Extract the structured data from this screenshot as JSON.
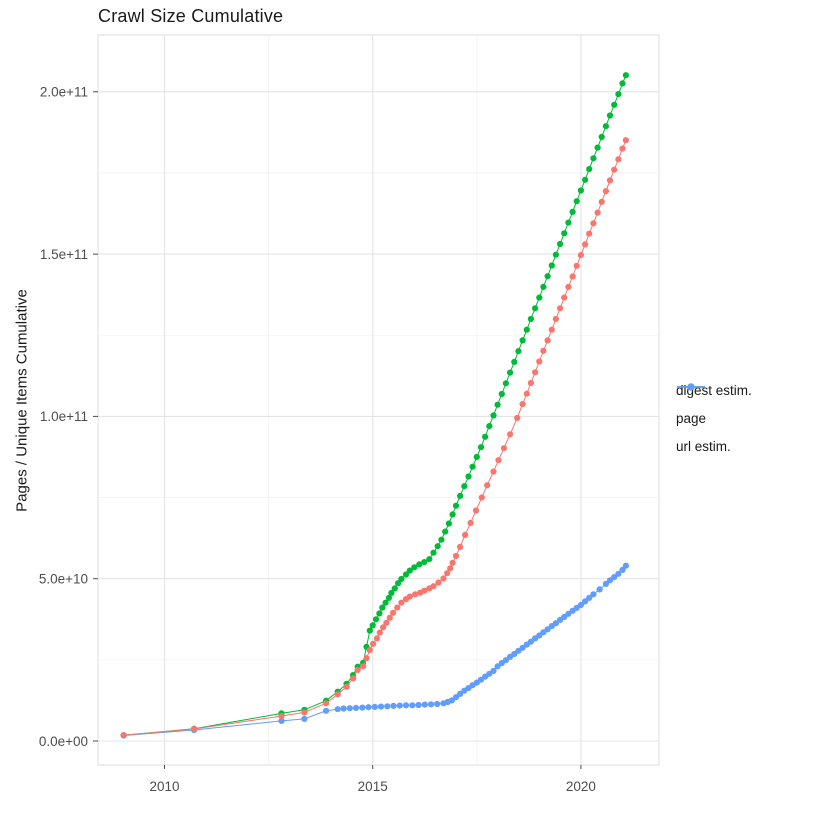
{
  "title": "Crawl Size Cumulative",
  "x_axis": {
    "ticks": [
      {
        "label": "2010",
        "value": 2010
      },
      {
        "label": "2015",
        "value": 2015
      },
      {
        "label": "2020",
        "value": 2020
      }
    ],
    "minor_gridlines": [
      2012.5,
      2017.5
    ]
  },
  "y_axis": {
    "label": "Pages / Unique Items Cumulative",
    "ticks": [
      {
        "label": "0.0e+00",
        "value_1e10": 0
      },
      {
        "label": "5.0e+10",
        "value_1e10": 5
      },
      {
        "label": "1.0e+11",
        "value_1e10": 10
      },
      {
        "label": "1.5e+11",
        "value_1e10": 15
      },
      {
        "label": "2.0e+11",
        "value_1e10": 20
      }
    ],
    "minor_gridlines_1e10": [
      2.5,
      7.5,
      12.5,
      17.5
    ]
  },
  "legend": {
    "position": "right",
    "items": [
      {
        "label": "digest estim.",
        "color": "#F8766D"
      },
      {
        "label": "page",
        "color": "#00BA38"
      },
      {
        "label": "url estim.",
        "color": "#619CFF"
      }
    ]
  },
  "colors": {
    "digest": "#F8766D",
    "page": "#00BA38",
    "url": "#619CFF",
    "grid_major": "#e4e4e4",
    "grid_minor": "#f2f2f2",
    "panel_border": "#dedede",
    "tick": "#4d4d4d",
    "tick_text": "#4d4d4d",
    "title_text": "#1a1a1a"
  },
  "chart_data": {
    "type": "scatter",
    "title": "Crawl Size Cumulative",
    "xlabel": "",
    "ylabel": "Pages / Unique Items Cumulative",
    "value_unit": "1e10 pages (y values below are in units of 1e10)",
    "x_domain": [
      2008.4,
      2021.87
    ],
    "y_domain_1e10": [
      -0.74,
      21.75
    ],
    "grid": true,
    "legend_position": "right",
    "series": [
      {
        "name": "digest estim.",
        "color": "#F8766D",
        "z": 3,
        "points": [
          [
            2009.02,
            0.18
          ],
          [
            2010.71,
            0.37
          ],
          [
            2012.81,
            0.77
          ],
          [
            2013.36,
            0.88
          ],
          [
            2013.88,
            1.16
          ],
          [
            2014.16,
            1.44
          ],
          [
            2014.37,
            1.67
          ],
          [
            2014.53,
            1.93
          ],
          [
            2014.64,
            2.19
          ],
          [
            2014.77,
            2.3
          ],
          [
            2014.85,
            2.55
          ],
          [
            2014.93,
            2.8
          ],
          [
            2015.01,
            2.99
          ],
          [
            2015.1,
            3.16
          ],
          [
            2015.17,
            3.34
          ],
          [
            2015.25,
            3.5
          ],
          [
            2015.33,
            3.64
          ],
          [
            2015.41,
            3.8
          ],
          [
            2015.49,
            3.95
          ],
          [
            2015.59,
            4.11
          ],
          [
            2015.69,
            4.26
          ],
          [
            2015.8,
            4.37
          ],
          [
            2015.89,
            4.45
          ],
          [
            2016.02,
            4.52
          ],
          [
            2016.14,
            4.57
          ],
          [
            2016.24,
            4.63
          ],
          [
            2016.36,
            4.7
          ],
          [
            2016.46,
            4.77
          ],
          [
            2016.58,
            4.88
          ],
          [
            2016.7,
            5.01
          ],
          [
            2016.79,
            5.17
          ],
          [
            2016.86,
            5.32
          ],
          [
            2016.92,
            5.49
          ],
          [
            2017.0,
            5.7
          ],
          [
            2017.1,
            5.98
          ],
          [
            2017.22,
            6.35
          ],
          [
            2017.35,
            6.72
          ],
          [
            2017.48,
            7.1
          ],
          [
            2017.62,
            7.5
          ],
          [
            2017.75,
            7.88
          ],
          [
            2017.9,
            8.3
          ],
          [
            2018.02,
            8.65
          ],
          [
            2018.15,
            9.02
          ],
          [
            2018.3,
            9.45
          ],
          [
            2018.47,
            9.95
          ],
          [
            2018.6,
            10.38
          ],
          [
            2018.7,
            10.7
          ],
          [
            2018.8,
            11.03
          ],
          [
            2018.9,
            11.36
          ],
          [
            2019.0,
            11.69
          ],
          [
            2019.1,
            12.02
          ],
          [
            2019.2,
            12.34
          ],
          [
            2019.3,
            12.67
          ],
          [
            2019.4,
            13.0
          ],
          [
            2019.5,
            13.33
          ],
          [
            2019.6,
            13.66
          ],
          [
            2019.7,
            13.99
          ],
          [
            2019.8,
            14.31
          ],
          [
            2019.9,
            14.64
          ],
          [
            2020.0,
            14.97
          ],
          [
            2020.1,
            15.3
          ],
          [
            2020.2,
            15.63
          ],
          [
            2020.3,
            15.95
          ],
          [
            2020.4,
            16.28
          ],
          [
            2020.5,
            16.61
          ],
          [
            2020.6,
            16.94
          ],
          [
            2020.7,
            17.27
          ],
          [
            2020.8,
            17.6
          ],
          [
            2020.9,
            17.92
          ],
          [
            2021.0,
            18.25
          ],
          [
            2021.08,
            18.51
          ]
        ]
      },
      {
        "name": "page",
        "color": "#00BA38",
        "z": 2,
        "points": [
          [
            2009.02,
            0.18
          ],
          [
            2010.71,
            0.38
          ],
          [
            2012.81,
            0.85
          ],
          [
            2013.36,
            0.96
          ],
          [
            2013.88,
            1.24
          ],
          [
            2014.16,
            1.52
          ],
          [
            2014.37,
            1.76
          ],
          [
            2014.53,
            2.03
          ],
          [
            2014.64,
            2.29
          ],
          [
            2014.77,
            2.41
          ],
          [
            2014.85,
            2.9
          ],
          [
            2014.93,
            3.4
          ],
          [
            2015.0,
            3.56
          ],
          [
            2015.08,
            3.75
          ],
          [
            2015.16,
            3.93
          ],
          [
            2015.23,
            4.11
          ],
          [
            2015.31,
            4.26
          ],
          [
            2015.39,
            4.41
          ],
          [
            2015.45,
            4.56
          ],
          [
            2015.53,
            4.7
          ],
          [
            2015.61,
            4.86
          ],
          [
            2015.69,
            4.99
          ],
          [
            2015.8,
            5.13
          ],
          [
            2015.89,
            5.25
          ],
          [
            2016.0,
            5.35
          ],
          [
            2016.12,
            5.44
          ],
          [
            2016.24,
            5.51
          ],
          [
            2016.36,
            5.6
          ],
          [
            2016.46,
            5.8
          ],
          [
            2016.56,
            6.0
          ],
          [
            2016.65,
            6.2
          ],
          [
            2016.74,
            6.45
          ],
          [
            2016.83,
            6.7
          ],
          [
            2016.92,
            6.98
          ],
          [
            2017.0,
            7.25
          ],
          [
            2017.1,
            7.55
          ],
          [
            2017.2,
            7.85
          ],
          [
            2017.3,
            8.15
          ],
          [
            2017.4,
            8.45
          ],
          [
            2017.5,
            8.75
          ],
          [
            2017.6,
            9.05
          ],
          [
            2017.7,
            9.37
          ],
          [
            2017.8,
            9.7
          ],
          [
            2017.9,
            10.03
          ],
          [
            2018.0,
            10.36
          ],
          [
            2018.1,
            10.69
          ],
          [
            2018.2,
            11.02
          ],
          [
            2018.3,
            11.35
          ],
          [
            2018.4,
            11.68
          ],
          [
            2018.5,
            12.01
          ],
          [
            2018.6,
            12.34
          ],
          [
            2018.7,
            12.67
          ],
          [
            2018.8,
            13.0
          ],
          [
            2018.9,
            13.33
          ],
          [
            2019.0,
            13.66
          ],
          [
            2019.1,
            13.99
          ],
          [
            2019.2,
            14.32
          ],
          [
            2019.3,
            14.65
          ],
          [
            2019.4,
            14.98
          ],
          [
            2019.5,
            15.31
          ],
          [
            2019.6,
            15.64
          ],
          [
            2019.7,
            15.97
          ],
          [
            2019.8,
            16.3
          ],
          [
            2019.9,
            16.63
          ],
          [
            2020.0,
            16.96
          ],
          [
            2020.1,
            17.29
          ],
          [
            2020.2,
            17.62
          ],
          [
            2020.3,
            17.95
          ],
          [
            2020.4,
            18.28
          ],
          [
            2020.5,
            18.61
          ],
          [
            2020.6,
            18.94
          ],
          [
            2020.7,
            19.27
          ],
          [
            2020.8,
            19.6
          ],
          [
            2020.9,
            19.93
          ],
          [
            2021.0,
            20.26
          ],
          [
            2021.08,
            20.51
          ]
        ]
      },
      {
        "name": "url estim.",
        "color": "#619CFF",
        "z": 1,
        "points": [
          [
            2009.02,
            0.17
          ],
          [
            2010.71,
            0.34
          ],
          [
            2012.81,
            0.62
          ],
          [
            2013.36,
            0.68
          ],
          [
            2013.88,
            0.93
          ],
          [
            2014.16,
            0.98
          ],
          [
            2014.3,
            1.0
          ],
          [
            2014.45,
            1.01
          ],
          [
            2014.6,
            1.02
          ],
          [
            2014.75,
            1.03
          ],
          [
            2014.9,
            1.04
          ],
          [
            2015.05,
            1.05
          ],
          [
            2015.2,
            1.06
          ],
          [
            2015.35,
            1.07
          ],
          [
            2015.5,
            1.08
          ],
          [
            2015.65,
            1.09
          ],
          [
            2015.8,
            1.1
          ],
          [
            2015.95,
            1.1
          ],
          [
            2016.1,
            1.11
          ],
          [
            2016.25,
            1.12
          ],
          [
            2016.4,
            1.13
          ],
          [
            2016.55,
            1.14
          ],
          [
            2016.7,
            1.16
          ],
          [
            2016.8,
            1.2
          ],
          [
            2016.9,
            1.25
          ],
          [
            2017.0,
            1.35
          ],
          [
            2017.1,
            1.45
          ],
          [
            2017.2,
            1.55
          ],
          [
            2017.3,
            1.63
          ],
          [
            2017.4,
            1.72
          ],
          [
            2017.5,
            1.8
          ],
          [
            2017.6,
            1.89
          ],
          [
            2017.7,
            1.98
          ],
          [
            2017.8,
            2.07
          ],
          [
            2017.9,
            2.16
          ],
          [
            2018.0,
            2.3
          ],
          [
            2018.1,
            2.4
          ],
          [
            2018.2,
            2.49
          ],
          [
            2018.3,
            2.59
          ],
          [
            2018.4,
            2.68
          ],
          [
            2018.5,
            2.78
          ],
          [
            2018.6,
            2.87
          ],
          [
            2018.7,
            2.97
          ],
          [
            2018.8,
            3.06
          ],
          [
            2018.9,
            3.16
          ],
          [
            2019.0,
            3.25
          ],
          [
            2019.1,
            3.35
          ],
          [
            2019.2,
            3.44
          ],
          [
            2019.3,
            3.54
          ],
          [
            2019.4,
            3.63
          ],
          [
            2019.5,
            3.73
          ],
          [
            2019.6,
            3.82
          ],
          [
            2019.7,
            3.92
          ],
          [
            2019.8,
            4.01
          ],
          [
            2019.9,
            4.1
          ],
          [
            2020.0,
            4.19
          ],
          [
            2020.1,
            4.3
          ],
          [
            2020.2,
            4.41
          ],
          [
            2020.3,
            4.52
          ],
          [
            2020.45,
            4.67
          ],
          [
            2020.6,
            4.84
          ],
          [
            2020.7,
            4.95
          ],
          [
            2020.8,
            5.05
          ],
          [
            2020.9,
            5.15
          ],
          [
            2021.0,
            5.27
          ],
          [
            2021.08,
            5.4
          ]
        ]
      }
    ]
  }
}
